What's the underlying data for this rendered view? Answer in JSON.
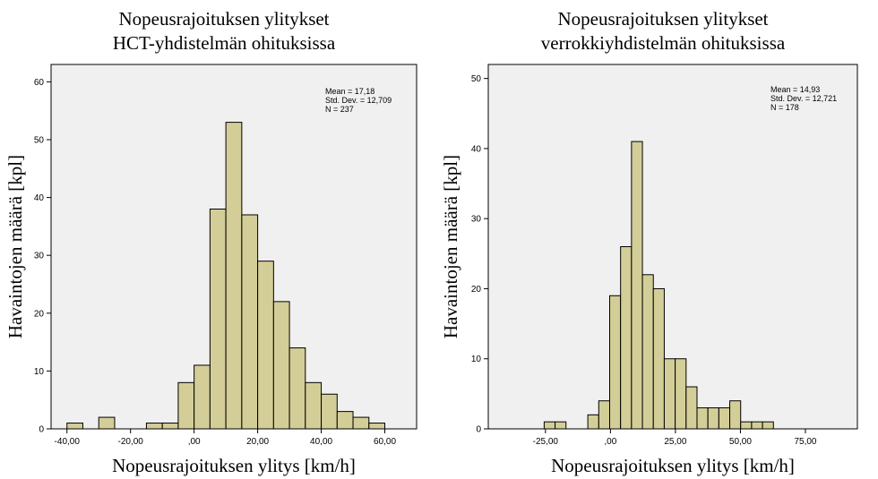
{
  "chart_data": [
    {
      "type": "histogram",
      "title_line1": "Nopeusrajoituksen ylitykset",
      "title_line2": "HCT-yhdistelmän ohituksissa",
      "xlabel": "Nopeusrajoituksen ylitys [km/h]",
      "ylabel": "Havaintojen määrä [kpl]",
      "xlim": [
        -45,
        70
      ],
      "ylim": [
        0,
        63
      ],
      "x_ticks": [
        -40,
        -20,
        0,
        20,
        40,
        60
      ],
      "x_tick_labels": [
        "-40,00",
        "-20,00",
        ",00",
        "20,00",
        "40,00",
        "60,00"
      ],
      "y_ticks": [
        0,
        10,
        20,
        30,
        40,
        50,
        60
      ],
      "y_tick_labels": [
        "0",
        "10",
        "20",
        "30",
        "40",
        "50",
        "60"
      ],
      "bin_width": 5,
      "bins": [
        {
          "start": -40,
          "count": 1
        },
        {
          "start": -35,
          "count": 0
        },
        {
          "start": -30,
          "count": 2
        },
        {
          "start": -25,
          "count": 0
        },
        {
          "start": -20,
          "count": 0
        },
        {
          "start": -15,
          "count": 1
        },
        {
          "start": -10,
          "count": 1
        },
        {
          "start": -5,
          "count": 8
        },
        {
          "start": 0,
          "count": 11
        },
        {
          "start": 5,
          "count": 38
        },
        {
          "start": 10,
          "count": 53
        },
        {
          "start": 15,
          "count": 37
        },
        {
          "start": 20,
          "count": 29
        },
        {
          "start": 25,
          "count": 22
        },
        {
          "start": 30,
          "count": 14
        },
        {
          "start": 35,
          "count": 8
        },
        {
          "start": 40,
          "count": 6
        },
        {
          "start": 45,
          "count": 3
        },
        {
          "start": 50,
          "count": 2
        },
        {
          "start": 55,
          "count": 1
        }
      ],
      "stats": [
        "Mean = 17,18",
        "Std. Dev. = 12,709",
        "N = 237"
      ]
    },
    {
      "type": "histogram",
      "title_line1": "Nopeusrajoituksen ylitykset",
      "title_line2": "verrokkiyhdistelmän ohituksissa",
      "xlabel": "Nopeusrajoituksen ylitys [km/h]",
      "ylabel": "Havaintojen määrä [kpl]",
      "xlim": [
        -47,
        95
      ],
      "ylim": [
        0,
        52
      ],
      "x_ticks": [
        -25,
        0,
        25,
        50,
        75
      ],
      "x_tick_labels": [
        "-25,00",
        ",00",
        "25,00",
        "50,00",
        "75,00"
      ],
      "y_ticks": [
        0,
        10,
        20,
        30,
        40,
        50
      ],
      "y_tick_labels": [
        "0",
        "10",
        "20",
        "30",
        "40",
        "50"
      ],
      "bin_width": 4.2,
      "bins": [
        {
          "start": -25.5,
          "count": 1
        },
        {
          "start": -21.3,
          "count": 1
        },
        {
          "start": -8.7,
          "count": 2
        },
        {
          "start": -4.5,
          "count": 4
        },
        {
          "start": -0.3,
          "count": 19
        },
        {
          "start": 3.9,
          "count": 26
        },
        {
          "start": 8.1,
          "count": 41
        },
        {
          "start": 12.3,
          "count": 22
        },
        {
          "start": 16.5,
          "count": 20
        },
        {
          "start": 20.7,
          "count": 10
        },
        {
          "start": 24.9,
          "count": 10
        },
        {
          "start": 29.1,
          "count": 6
        },
        {
          "start": 33.3,
          "count": 3
        },
        {
          "start": 37.5,
          "count": 3
        },
        {
          "start": 41.7,
          "count": 3
        },
        {
          "start": 45.9,
          "count": 4
        },
        {
          "start": 50.1,
          "count": 1
        },
        {
          "start": 54.3,
          "count": 1
        },
        {
          "start": 58.5,
          "count": 1
        }
      ],
      "stats": [
        "Mean = 14,93",
        "Std. Dev. = 12,721",
        "N = 178"
      ]
    }
  ]
}
